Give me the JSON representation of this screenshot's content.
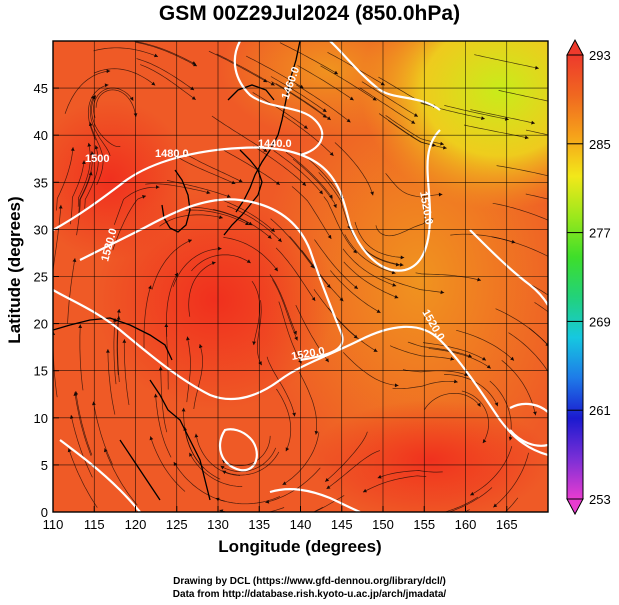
{
  "title": "GSM 00Z29Jul2024 (850.0hPa)",
  "xlabel": "Longitude (degrees)",
  "ylabel": "Latitude  (degrees)",
  "credits": [
    "Drawing by DCL (https://www.gfd-dennou.org/library/dcl/)",
    "Data from http://database.rish.kyoto-u.ac.jp/arch/jmadata/"
  ],
  "map": {
    "lon_range": [
      110,
      170
    ],
    "lat_range": [
      0,
      50
    ],
    "lon_ticks": [
      110,
      115,
      120,
      125,
      130,
      135,
      140,
      145,
      150,
      155,
      160,
      165
    ],
    "lat_ticks": [
      0,
      5,
      10,
      15,
      20,
      25,
      30,
      35,
      40,
      45
    ],
    "gridlines": true,
    "contour_labels": [
      "1440.0",
      "1460.0",
      "1480.0",
      "1500",
      "1520.0",
      "1520.0",
      "1520.0",
      "1520.0"
    ]
  },
  "colorbar": {
    "ticks": [
      253,
      261,
      269,
      277,
      285,
      293
    ],
    "range": [
      253,
      293
    ],
    "colors": [
      "#e83cd0",
      "#7a2fd6",
      "#1b1ad0",
      "#1e7be8",
      "#16c8e0",
      "#22d27a",
      "#3ede2a",
      "#9ce81c",
      "#f2e81a",
      "#f6a21a",
      "#f06820",
      "#ee3a2c"
    ]
  }
}
